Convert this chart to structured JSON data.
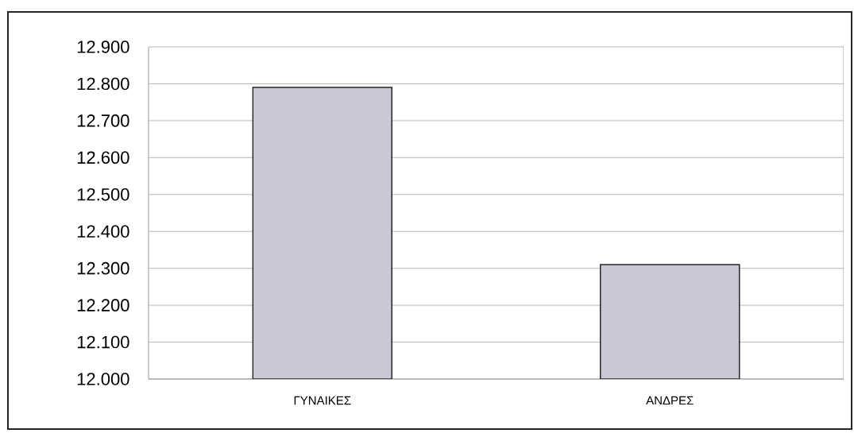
{
  "chart_data": {
    "type": "bar",
    "categories": [
      "ΓΥΝΑΙΚΕΣ",
      "ΑΝΔΡΕΣ"
    ],
    "values": [
      12790,
      12310
    ],
    "color": "#c8c9d4",
    "ylim": [
      12000,
      12900
    ],
    "yticks": [
      {
        "value": 12000,
        "label": "12.000"
      },
      {
        "value": 12100,
        "label": "12.100"
      },
      {
        "value": 12200,
        "label": "12.200"
      },
      {
        "value": 12300,
        "label": "12.300"
      },
      {
        "value": 12400,
        "label": "12.400"
      },
      {
        "value": 12500,
        "label": "12.500"
      },
      {
        "value": 12600,
        "label": "12.600"
      },
      {
        "value": 12700,
        "label": "12.700"
      },
      {
        "value": 12800,
        "label": "12.800"
      },
      {
        "value": 12900,
        "label": "12.900"
      }
    ],
    "grid": "y"
  }
}
